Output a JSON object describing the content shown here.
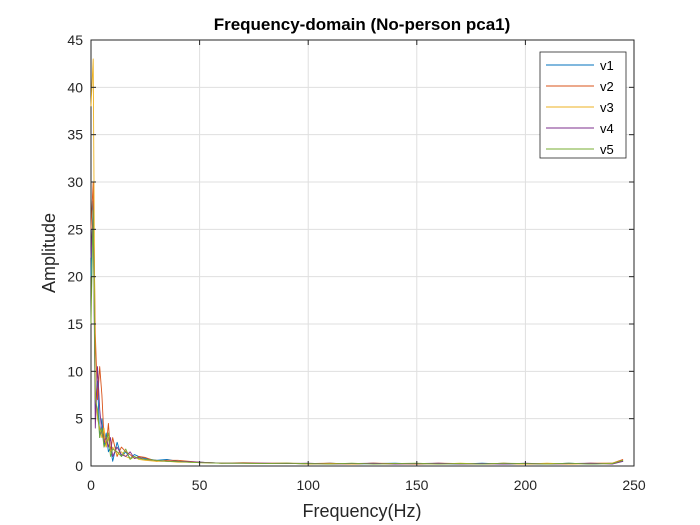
{
  "chart_data": {
    "type": "line",
    "title": "Frequency-domain (No-person pca1)",
    "xlabel": "Frequency(Hz)",
    "ylabel": "Amplitude",
    "xlim": [
      0,
      250
    ],
    "ylim": [
      0,
      45
    ],
    "xticks": [
      0,
      50,
      100,
      150,
      200,
      250
    ],
    "yticks": [
      0,
      5,
      10,
      15,
      20,
      25,
      30,
      35,
      40,
      45
    ],
    "grid": true,
    "legend_position": "top-right",
    "x": [
      0,
      1,
      2,
      3,
      4,
      5,
      6,
      7,
      8,
      9,
      10,
      12,
      14,
      16,
      18,
      20,
      22,
      25,
      30,
      35,
      40,
      45,
      50,
      60,
      70,
      80,
      90,
      100,
      110,
      120,
      130,
      140,
      150,
      160,
      170,
      180,
      190,
      200,
      210,
      220,
      230,
      240,
      245
    ],
    "series": [
      {
        "name": "v1",
        "color": "#0072BD",
        "values": [
          20,
          28,
          6,
          9,
          3,
          5,
          2,
          3.5,
          1.5,
          2,
          0.5,
          2.5,
          1,
          1.5,
          0.8,
          1.2,
          1,
          0.8,
          0.6,
          0.7,
          0.5,
          0.4,
          0.4,
          0.3,
          0.3,
          0.25,
          0.3,
          0.2,
          0.3,
          0.2,
          0.25,
          0.3,
          0.2,
          0.25,
          0.2,
          0.3,
          0.2,
          0.25,
          0.2,
          0.3,
          0.2,
          0.3,
          0.5
        ]
      },
      {
        "name": "v2",
        "color": "#D95319",
        "values": [
          25,
          30,
          14,
          7,
          10.5,
          7.5,
          3,
          2,
          4.5,
          1.5,
          3,
          1,
          2,
          1.5,
          1.2,
          0.8,
          1,
          0.9,
          0.5,
          0.6,
          0.6,
          0.5,
          0.4,
          0.3,
          0.35,
          0.3,
          0.3,
          0.25,
          0.3,
          0.2,
          0.3,
          0.25,
          0.2,
          0.3,
          0.25,
          0.2,
          0.3,
          0.2,
          0.25,
          0.2,
          0.3,
          0.3,
          0.7
        ]
      },
      {
        "name": "v3",
        "color": "#EDB120",
        "values": [
          38,
          43,
          8,
          5,
          4,
          3,
          4,
          2,
          3,
          1.5,
          2,
          1.2,
          1.5,
          1,
          0.8,
          1,
          0.7,
          0.6,
          0.5,
          0.5,
          0.4,
          0.4,
          0.35,
          0.3,
          0.3,
          0.25,
          0.3,
          0.2,
          0.25,
          0.2,
          0.3,
          0.2,
          0.25,
          0.2,
          0.3,
          0.2,
          0.25,
          0.2,
          0.3,
          0.2,
          0.25,
          0.3,
          0.6
        ]
      },
      {
        "name": "v4",
        "color": "#7E2F8E",
        "values": [
          22,
          27,
          4,
          10.5,
          6,
          3.5,
          2.5,
          3,
          2,
          3,
          1,
          2,
          1.2,
          1,
          1.5,
          0.8,
          0.9,
          0.7,
          0.6,
          0.5,
          0.5,
          0.45,
          0.4,
          0.3,
          0.3,
          0.3,
          0.25,
          0.3,
          0.2,
          0.25,
          0.3,
          0.2,
          0.25,
          0.3,
          0.2,
          0.25,
          0.2,
          0.3,
          0.2,
          0.25,
          0.3,
          0.2,
          0.5
        ]
      },
      {
        "name": "v5",
        "color": "#77AC30",
        "values": [
          15,
          27,
          7,
          6,
          3,
          4,
          2,
          2.5,
          3.5,
          1,
          1.8,
          1.5,
          1,
          1.8,
          0.7,
          1,
          0.8,
          0.7,
          0.6,
          0.5,
          0.45,
          0.4,
          0.35,
          0.3,
          0.3,
          0.25,
          0.3,
          0.25,
          0.2,
          0.3,
          0.2,
          0.25,
          0.3,
          0.2,
          0.25,
          0.2,
          0.3,
          0.25,
          0.2,
          0.3,
          0.2,
          0.25,
          0.6
        ]
      }
    ]
  }
}
